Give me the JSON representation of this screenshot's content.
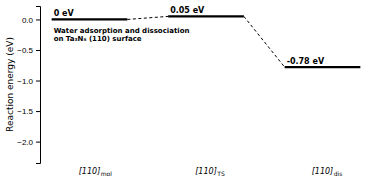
{
  "chart_data": {
    "type": "energy_diagram",
    "ylabel": "Reaction energy (eV)",
    "annotation": "Water adsorption and dissociation\non Ta₃N₅ (110) surface",
    "categories": [
      "[110]",
      "[110]",
      "[110]"
    ],
    "category_subscripts": [
      "mol",
      "TS",
      "dis"
    ],
    "values": [
      0.0,
      0.05,
      -0.78
    ],
    "value_labels": [
      "0 eV",
      "0.05 eV",
      "-0.78 eV"
    ],
    "data_labels": true,
    "color": "#000000",
    "ylim": [
      -2.35,
      0.22
    ],
    "yticks": [
      {
        "value": 0.0,
        "label": "0.0"
      },
      {
        "value": -0.5,
        "label": "−0.5"
      },
      {
        "value": -1.0,
        "label": "−1.0"
      },
      {
        "value": -1.5,
        "label": "−1.5"
      },
      {
        "value": -2.0,
        "label": "−2.0"
      }
    ],
    "grid": false
  }
}
